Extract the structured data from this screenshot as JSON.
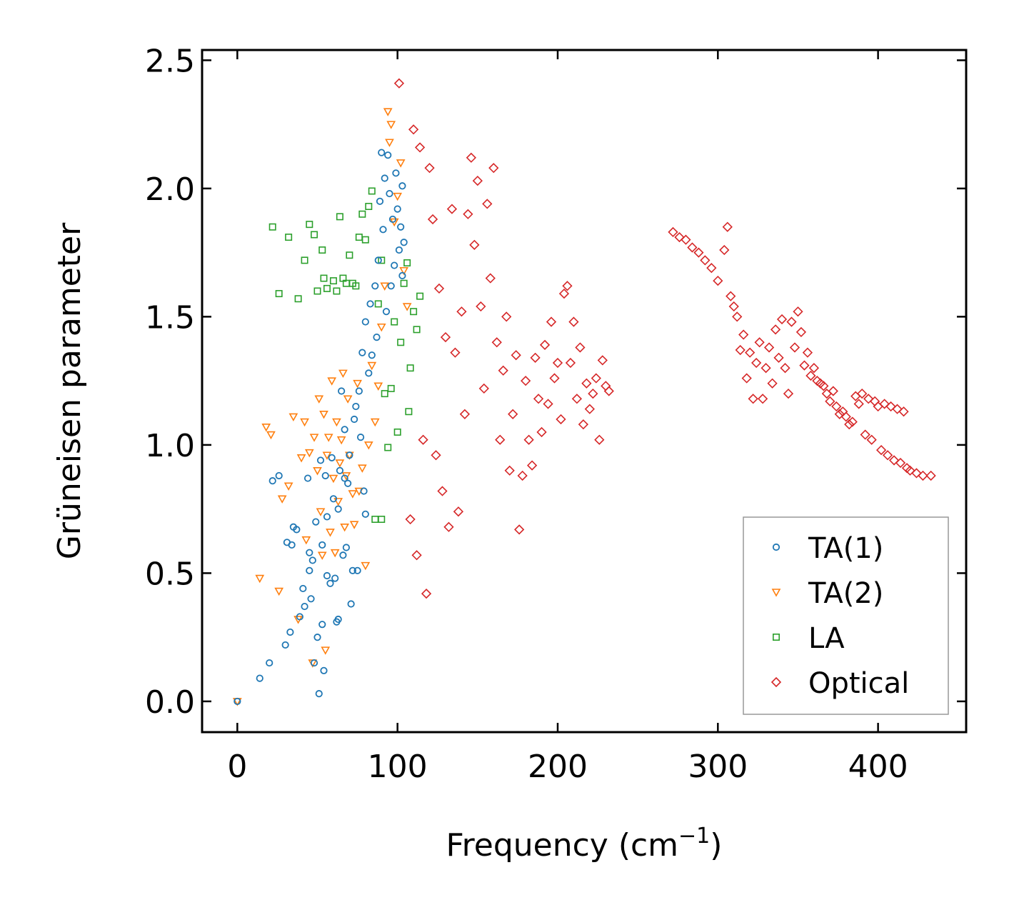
{
  "chart_data": {
    "type": "scatter",
    "title": "",
    "xlabel": "Frequency (cm",
    "xlabel_sup": "−1",
    "xlabel_tail": ")",
    "ylabel": "Grüneisen parameter",
    "xlim": [
      -22,
      455
    ],
    "ylim": [
      -0.12,
      2.54
    ],
    "xticks": [
      0,
      100,
      200,
      300,
      400
    ],
    "xtick_labels": [
      "0",
      "100",
      "200",
      "300",
      "400"
    ],
    "yticks": [
      0.0,
      0.5,
      1.0,
      1.5,
      2.0,
      2.5
    ],
    "ytick_labels": [
      "0.0",
      "0.5",
      "1.0",
      "1.5",
      "2.0",
      "2.5"
    ],
    "legend_position": "lower-right",
    "series": [
      {
        "name": "TA(1)",
        "marker": "circle",
        "color": "#1f77b4",
        "points": [
          [
            0,
            0.0
          ],
          [
            14,
            0.09
          ],
          [
            20,
            0.15
          ],
          [
            22,
            0.86
          ],
          [
            26,
            0.88
          ],
          [
            30,
            0.22
          ],
          [
            31,
            0.62
          ],
          [
            33,
            0.27
          ],
          [
            34,
            0.61
          ],
          [
            35,
            0.68
          ],
          [
            37,
            0.67
          ],
          [
            39,
            0.33
          ],
          [
            41,
            0.44
          ],
          [
            42,
            0.37
          ],
          [
            44,
            0.87
          ],
          [
            45,
            0.51
          ],
          [
            45,
            0.58
          ],
          [
            46,
            0.4
          ],
          [
            47,
            0.55
          ],
          [
            48,
            0.15
          ],
          [
            49,
            0.7
          ],
          [
            50,
            0.25
          ],
          [
            51,
            0.03
          ],
          [
            52,
            0.94
          ],
          [
            53,
            0.61
          ],
          [
            53,
            0.3
          ],
          [
            54,
            0.12
          ],
          [
            55,
            0.88
          ],
          [
            56,
            0.72
          ],
          [
            56,
            0.49
          ],
          [
            58,
            0.46
          ],
          [
            59,
            0.95
          ],
          [
            60,
            0.79
          ],
          [
            61,
            0.48
          ],
          [
            62,
            0.31
          ],
          [
            63,
            0.75
          ],
          [
            63,
            0.32
          ],
          [
            64,
            0.9
          ],
          [
            65,
            1.21
          ],
          [
            66,
            0.57
          ],
          [
            67,
            0.87
          ],
          [
            67,
            1.06
          ],
          [
            68,
            0.6
          ],
          [
            69,
            0.85
          ],
          [
            70,
            0.96
          ],
          [
            71,
            0.38
          ],
          [
            72,
            0.51
          ],
          [
            73,
            1.1
          ],
          [
            74,
            1.15
          ],
          [
            75,
            0.51
          ],
          [
            76,
            1.21
          ],
          [
            77,
            1.03
          ],
          [
            78,
            1.36
          ],
          [
            79,
            0.82
          ],
          [
            80,
            1.48
          ],
          [
            80,
            0.73
          ],
          [
            82,
            1.28
          ],
          [
            83,
            1.55
          ],
          [
            84,
            1.35
          ],
          [
            86,
            1.62
          ],
          [
            87,
            1.42
          ],
          [
            88,
            1.72
          ],
          [
            89,
            1.95
          ],
          [
            90,
            2.14
          ],
          [
            91,
            1.84
          ],
          [
            92,
            2.04
          ],
          [
            93,
            1.52
          ],
          [
            94,
            2.13
          ],
          [
            95,
            1.98
          ],
          [
            96,
            1.62
          ],
          [
            97,
            1.88
          ],
          [
            98,
            1.7
          ],
          [
            99,
            2.06
          ],
          [
            100,
            1.92
          ],
          [
            101,
            1.76
          ],
          [
            102,
            1.85
          ],
          [
            103,
            1.66
          ],
          [
            103,
            2.01
          ],
          [
            104,
            1.79
          ]
        ]
      },
      {
        "name": "TA(2)",
        "marker": "triangle-down",
        "color": "#ff7f0e",
        "points": [
          [
            0,
            0.0
          ],
          [
            14,
            0.48
          ],
          [
            18,
            1.07
          ],
          [
            21,
            1.04
          ],
          [
            26,
            0.43
          ],
          [
            28,
            0.79
          ],
          [
            32,
            0.84
          ],
          [
            35,
            1.11
          ],
          [
            38,
            0.32
          ],
          [
            40,
            0.95
          ],
          [
            42,
            1.09
          ],
          [
            43,
            0.63
          ],
          [
            45,
            0.97
          ],
          [
            47,
            0.15
          ],
          [
            48,
            1.03
          ],
          [
            50,
            0.9
          ],
          [
            51,
            1.18
          ],
          [
            52,
            0.74
          ],
          [
            53,
            0.57
          ],
          [
            54,
            1.12
          ],
          [
            55,
            0.2
          ],
          [
            56,
            0.96
          ],
          [
            57,
            1.03
          ],
          [
            58,
            0.66
          ],
          [
            59,
            1.25
          ],
          [
            60,
            0.87
          ],
          [
            61,
            0.58
          ],
          [
            62,
            1.09
          ],
          [
            63,
            0.78
          ],
          [
            64,
            0.93
          ],
          [
            65,
            1.02
          ],
          [
            66,
            1.28
          ],
          [
            67,
            0.68
          ],
          [
            68,
            0.88
          ],
          [
            69,
            1.18
          ],
          [
            70,
            0.96
          ],
          [
            72,
            0.81
          ],
          [
            73,
            0.69
          ],
          [
            75,
            1.24
          ],
          [
            76,
            0.82
          ],
          [
            78,
            0.91
          ],
          [
            80,
            0.53
          ],
          [
            82,
            1.0
          ],
          [
            84,
            1.31
          ],
          [
            86,
            1.09
          ],
          [
            88,
            1.23
          ],
          [
            90,
            1.46
          ],
          [
            92,
            1.62
          ],
          [
            94,
            2.3
          ],
          [
            95,
            2.18
          ],
          [
            96,
            2.25
          ],
          [
            98,
            1.87
          ],
          [
            100,
            1.97
          ],
          [
            102,
            2.1
          ],
          [
            104,
            1.68
          ],
          [
            106,
            1.54
          ]
        ]
      },
      {
        "name": "LA",
        "marker": "square",
        "color": "#2ca02c",
        "points": [
          [
            22,
            1.85
          ],
          [
            26,
            1.59
          ],
          [
            32,
            1.81
          ],
          [
            38,
            1.57
          ],
          [
            42,
            1.72
          ],
          [
            45,
            1.86
          ],
          [
            48,
            1.82
          ],
          [
            50,
            1.6
          ],
          [
            53,
            1.76
          ],
          [
            54,
            1.65
          ],
          [
            56,
            1.61
          ],
          [
            60,
            1.64
          ],
          [
            62,
            1.6
          ],
          [
            64,
            1.89
          ],
          [
            66,
            1.65
          ],
          [
            68,
            1.63
          ],
          [
            70,
            1.74
          ],
          [
            72,
            1.63
          ],
          [
            74,
            1.62
          ],
          [
            76,
            1.81
          ],
          [
            78,
            1.9
          ],
          [
            80,
            1.8
          ],
          [
            82,
            1.93
          ],
          [
            84,
            1.99
          ],
          [
            86,
            0.71
          ],
          [
            88,
            1.55
          ],
          [
            90,
            1.72
          ],
          [
            90,
            0.71
          ],
          [
            92,
            1.2
          ],
          [
            94,
            0.99
          ],
          [
            96,
            1.22
          ],
          [
            98,
            1.48
          ],
          [
            100,
            1.05
          ],
          [
            102,
            1.4
          ],
          [
            104,
            1.63
          ],
          [
            106,
            1.71
          ],
          [
            107,
            1.13
          ],
          [
            108,
            1.3
          ],
          [
            110,
            1.52
          ],
          [
            112,
            1.45
          ],
          [
            114,
            1.58
          ]
        ]
      },
      {
        "name": "Optical",
        "marker": "diamond",
        "color": "#d62728",
        "points": [
          [
            101,
            2.41
          ],
          [
            108,
            0.71
          ],
          [
            110,
            2.23
          ],
          [
            112,
            0.57
          ],
          [
            114,
            2.16
          ],
          [
            116,
            1.02
          ],
          [
            118,
            0.42
          ],
          [
            120,
            2.08
          ],
          [
            122,
            1.88
          ],
          [
            124,
            0.96
          ],
          [
            126,
            1.61
          ],
          [
            128,
            0.82
          ],
          [
            130,
            1.42
          ],
          [
            132,
            0.68
          ],
          [
            134,
            1.92
          ],
          [
            136,
            1.36
          ],
          [
            138,
            0.74
          ],
          [
            140,
            1.52
          ],
          [
            142,
            1.12
          ],
          [
            144,
            1.9
          ],
          [
            146,
            2.12
          ],
          [
            148,
            1.78
          ],
          [
            150,
            2.03
          ],
          [
            152,
            1.54
          ],
          [
            154,
            1.22
          ],
          [
            156,
            1.94
          ],
          [
            158,
            1.65
          ],
          [
            160,
            2.08
          ],
          [
            162,
            1.4
          ],
          [
            164,
            1.02
          ],
          [
            166,
            1.29
          ],
          [
            168,
            1.5
          ],
          [
            170,
            0.9
          ],
          [
            172,
            1.12
          ],
          [
            174,
            1.35
          ],
          [
            176,
            0.67
          ],
          [
            178,
            0.88
          ],
          [
            180,
            1.25
          ],
          [
            182,
            1.02
          ],
          [
            184,
            0.92
          ],
          [
            186,
            1.34
          ],
          [
            188,
            1.18
          ],
          [
            190,
            1.05
          ],
          [
            192,
            1.39
          ],
          [
            194,
            1.16
          ],
          [
            196,
            1.48
          ],
          [
            198,
            1.26
          ],
          [
            200,
            1.32
          ],
          [
            202,
            1.1
          ],
          [
            204,
            1.59
          ],
          [
            206,
            1.62
          ],
          [
            208,
            1.32
          ],
          [
            210,
            1.48
          ],
          [
            212,
            1.18
          ],
          [
            214,
            1.38
          ],
          [
            216,
            1.08
          ],
          [
            218,
            1.24
          ],
          [
            220,
            1.14
          ],
          [
            222,
            1.2
          ],
          [
            224,
            1.26
          ],
          [
            226,
            1.02
          ],
          [
            228,
            1.33
          ],
          [
            230,
            1.23
          ],
          [
            232,
            1.21
          ],
          [
            272,
            1.83
          ],
          [
            276,
            1.81
          ],
          [
            280,
            1.8
          ],
          [
            284,
            1.77
          ],
          [
            288,
            1.75
          ],
          [
            292,
            1.72
          ],
          [
            296,
            1.69
          ],
          [
            300,
            1.64
          ],
          [
            304,
            1.76
          ],
          [
            306,
            1.85
          ],
          [
            308,
            1.58
          ],
          [
            310,
            1.54
          ],
          [
            312,
            1.5
          ],
          [
            314,
            1.37
          ],
          [
            316,
            1.43
          ],
          [
            318,
            1.26
          ],
          [
            320,
            1.36
          ],
          [
            322,
            1.18
          ],
          [
            324,
            1.32
          ],
          [
            326,
            1.4
          ],
          [
            328,
            1.18
          ],
          [
            330,
            1.3
          ],
          [
            332,
            1.38
          ],
          [
            334,
            1.24
          ],
          [
            336,
            1.45
          ],
          [
            338,
            1.34
          ],
          [
            340,
            1.49
          ],
          [
            342,
            1.3
          ],
          [
            344,
            1.2
          ],
          [
            346,
            1.48
          ],
          [
            348,
            1.38
          ],
          [
            350,
            1.52
          ],
          [
            352,
            1.44
          ],
          [
            354,
            1.31
          ],
          [
            356,
            1.36
          ],
          [
            358,
            1.27
          ],
          [
            360,
            1.3
          ],
          [
            362,
            1.25
          ],
          [
            364,
            1.24
          ],
          [
            366,
            1.23
          ],
          [
            368,
            1.2
          ],
          [
            370,
            1.17
          ],
          [
            372,
            1.21
          ],
          [
            374,
            1.15
          ],
          [
            376,
            1.12
          ],
          [
            378,
            1.13
          ],
          [
            380,
            1.11
          ],
          [
            382,
            1.08
          ],
          [
            384,
            1.09
          ],
          [
            386,
            1.19
          ],
          [
            388,
            1.16
          ],
          [
            390,
            1.2
          ],
          [
            392,
            1.04
          ],
          [
            394,
            1.18
          ],
          [
            396,
            1.02
          ],
          [
            398,
            1.17
          ],
          [
            400,
            1.15
          ],
          [
            402,
            0.98
          ],
          [
            404,
            1.16
          ],
          [
            406,
            0.96
          ],
          [
            408,
            1.15
          ],
          [
            410,
            0.94
          ],
          [
            412,
            1.14
          ],
          [
            414,
            0.93
          ],
          [
            416,
            1.13
          ],
          [
            418,
            0.91
          ],
          [
            420,
            0.9
          ],
          [
            424,
            0.89
          ],
          [
            428,
            0.88
          ],
          [
            433,
            0.88
          ]
        ]
      }
    ]
  }
}
